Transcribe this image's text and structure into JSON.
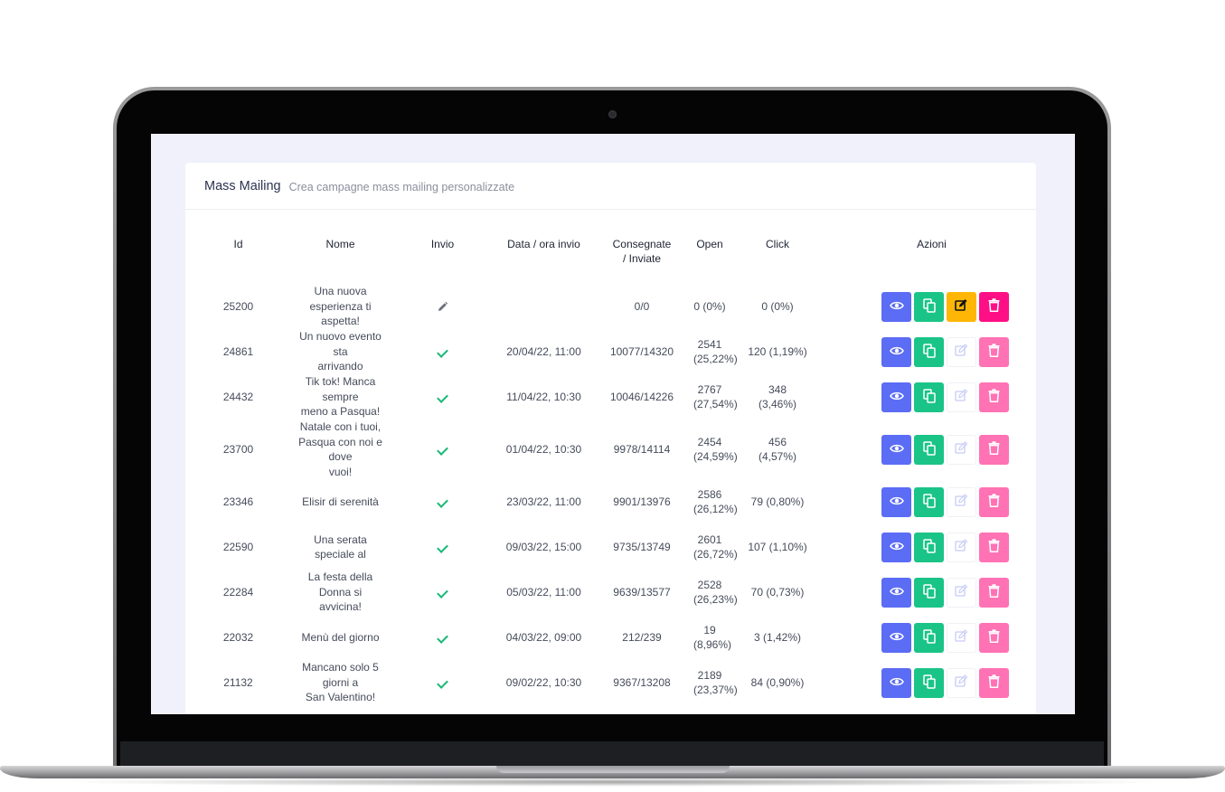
{
  "header": {
    "title": "Mass Mailing",
    "subtitle": "Crea campagne mass mailing personalizzate"
  },
  "columns": {
    "id": "Id",
    "nome": "Nome",
    "invio": "Invio",
    "data": "Data / ora invio",
    "consegnate_1": "Consegnate",
    "consegnate_2": "/ Inviate",
    "open": "Open",
    "click": "Click",
    "azioni": "Azioni"
  },
  "rows": [
    {
      "id": "25200",
      "nome_1": "Una nuova esperienza ti",
      "nome_2": "aspetta!",
      "invio": "draft",
      "data": "",
      "consegnate": "0/0",
      "open_1": "0 (0%)",
      "open_2": "",
      "click_1": "0 (0%)",
      "click_2": "",
      "editable": true
    },
    {
      "id": "24861",
      "nome_1": "Un nuovo evento sta",
      "nome_2": "arrivando",
      "invio": "sent",
      "data": "20/04/22, 11:00",
      "consegnate": "10077/14320",
      "open_1": "2541",
      "open_2": "(25,22%)",
      "click_1": "120 (1,19%)",
      "click_2": "",
      "editable": false
    },
    {
      "id": "24432",
      "nome_1": "Tik tok! Manca sempre",
      "nome_2": "meno a Pasqua!",
      "invio": "sent",
      "data": "11/04/22, 10:30",
      "consegnate": "10046/14226",
      "open_1": "2767",
      "open_2": "(27,54%)",
      "click_1": "348",
      "click_2": "(3,46%)",
      "editable": false
    },
    {
      "id": "23700",
      "nome_1": "Natale con i tuoi,",
      "nome_2": "Pasqua con noi e dove",
      "nome_3": "vuoi!",
      "invio": "sent",
      "data": "01/04/22, 10:30",
      "consegnate": "9978/14114",
      "open_1": "2454",
      "open_2": "(24,59%)",
      "click_1": "456",
      "click_2": "(4,57%)",
      "editable": false
    },
    {
      "id": "23346",
      "nome_1": "Elisir di serenità",
      "nome_2": "",
      "invio": "sent",
      "data": "23/03/22, 11:00",
      "consegnate": "9901/13976",
      "open_1": "2586",
      "open_2": "(26,12%)",
      "click_1": "79 (0,80%)",
      "click_2": "",
      "editable": false
    },
    {
      "id": "22590",
      "nome_1": "Una serata speciale al",
      "nome_2": "",
      "invio": "sent",
      "data": "09/03/22, 15:00",
      "consegnate": "9735/13749",
      "open_1": "2601",
      "open_2": "(26,72%)",
      "click_1": "107 (1,10%)",
      "click_2": "",
      "editable": false
    },
    {
      "id": "22284",
      "nome_1": "La festa della Donna si",
      "nome_2": "avvicina!",
      "invio": "sent",
      "data": "05/03/22, 11:00",
      "consegnate": "9639/13577",
      "open_1": "2528",
      "open_2": "(26,23%)",
      "click_1": "70 (0,73%)",
      "click_2": "",
      "editable": false
    },
    {
      "id": "22032",
      "nome_1": "Menù del giorno",
      "nome_2": "",
      "invio": "sent",
      "data": "04/03/22, 09:00",
      "consegnate": "212/239",
      "open_1": "19 (8,96%)",
      "open_2": "",
      "click_1": "3 (1,42%)",
      "click_2": "",
      "editable": false
    },
    {
      "id": "21132",
      "nome_1": "Mancano solo 5 giorni a",
      "nome_2": "San Valentino!",
      "invio": "sent",
      "data": "09/02/22, 10:30",
      "consegnate": "9367/13208",
      "open_1": "2189",
      "open_2": "(23,37%)",
      "click_1": "84 (0,90%)",
      "click_2": "",
      "editable": false
    }
  ],
  "icons": {
    "view": "eye-icon",
    "copy": "copy-icon",
    "edit": "edit-icon",
    "delete": "trash-icon",
    "draft": "pencil-icon",
    "sent": "check-icon"
  },
  "colors": {
    "view": "#5b6cf5",
    "copy": "#1ac487",
    "edit": "#ffb605",
    "delete": "#ff0f85",
    "delete_soft": "#ff72b4",
    "check": "#18b877",
    "background": "#f0f1fa"
  }
}
